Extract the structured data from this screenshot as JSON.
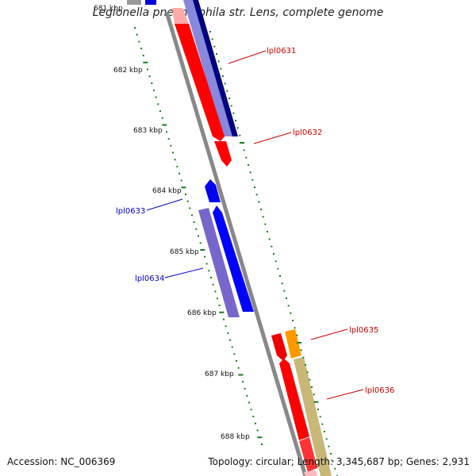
{
  "title": "Legionella pneumophila str. Lens, complete genome",
  "footer": {
    "accession": "Accession: NC_006369",
    "summary": "Topology: circular; Length: 3,345,687 bp; Genes: 2,931"
  },
  "ticks": [
    {
      "label": "682 kbp",
      "kbp": 682
    },
    {
      "label": "683 kbp",
      "kbp": 683
    },
    {
      "label": "684 kbp",
      "kbp": 684
    },
    {
      "label": "685 kbp",
      "kbp": 685
    },
    {
      "label": "686 kbp",
      "kbp": 686
    },
    {
      "label": "687 kbp",
      "kbp": 687
    },
    {
      "label": "688 kbp",
      "kbp": 688
    }
  ],
  "genes": [
    {
      "name": "lpl0631",
      "strand": "forward",
      "color": "#cc0000"
    },
    {
      "name": "lpl0632",
      "strand": "forward",
      "color": "#cc0000"
    },
    {
      "name": "lpl0633",
      "strand": "reverse",
      "color": "#0000cc"
    },
    {
      "name": "lpl0634",
      "strand": "reverse",
      "color": "#0000cc"
    },
    {
      "name": "lpl0635",
      "strand": "forward",
      "color": "#cc0000"
    },
    {
      "name": "lpl0636",
      "strand": "forward",
      "color": "#cc0000"
    }
  ],
  "colors": {
    "backbone": "#888888",
    "tick": "#1a7a1a",
    "forward_gene": "#ff0000",
    "reverse_gene": "#0000ff",
    "forward_shade": "#6666cc",
    "reverse_shade": "#7766cc",
    "orange": "#ff9900",
    "tan": "#c8b878"
  }
}
